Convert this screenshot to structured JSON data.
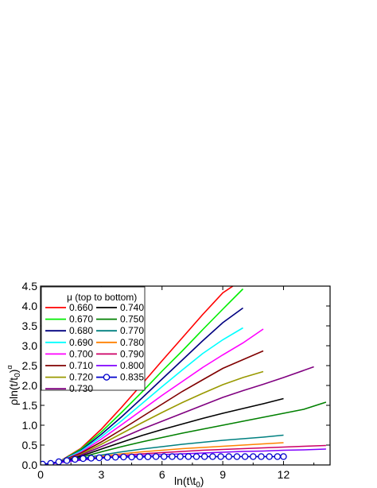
{
  "chart_data": {
    "type": "line",
    "title": "",
    "xlabel": "ln(t\\t",
    "xlabel_sub": "0",
    "xlabel_close": ")",
    "ylabel": "ρln(t/t",
    "ylabel_sub": "0",
    "ylabel_close": ")",
    "ylabel_sup": "α",
    "xlim": [
      0,
      14.3
    ],
    "ylim": [
      0,
      4.5
    ],
    "xticks": [
      "0",
      "3",
      "6",
      "9",
      "12"
    ],
    "xtick_values": [
      0,
      3,
      6,
      9,
      12
    ],
    "yticks": [
      "0.0",
      "0.5",
      "1.0",
      "1.5",
      "2.0",
      "2.5",
      "3.0",
      "3.5",
      "4.0",
      "4.5"
    ],
    "ytick_values": [
      0,
      0.5,
      1,
      1.5,
      2,
      2.5,
      3,
      3.5,
      4,
      4.5
    ],
    "grid": false,
    "legend_placement": "top-left",
    "legend_title": "μ (top to bottom)",
    "series": [
      {
        "name": "0.660",
        "color": "#ff0000",
        "x": [
          0,
          0.5,
          1,
          2,
          3,
          4,
          5,
          6,
          7,
          8,
          9,
          9.5
        ],
        "y": [
          0,
          0.03,
          0.11,
          0.42,
          0.9,
          1.45,
          2.03,
          2.62,
          3.2,
          3.78,
          4.33,
          4.5
        ]
      },
      {
        "name": "0.670",
        "color": "#00ee00",
        "x": [
          0,
          0.5,
          1,
          2,
          3,
          4,
          5,
          6,
          7,
          8,
          9,
          10
        ],
        "y": [
          0,
          0.03,
          0.1,
          0.4,
          0.83,
          1.32,
          1.83,
          2.36,
          2.87,
          3.4,
          3.92,
          4.43
        ]
      },
      {
        "name": "0.680",
        "color": "#000080",
        "x": [
          0,
          0.5,
          1,
          2,
          3,
          4,
          5,
          6,
          7,
          8,
          9,
          10
        ],
        "y": [
          0,
          0.03,
          0.1,
          0.37,
          0.77,
          1.21,
          1.68,
          2.16,
          2.64,
          3.12,
          3.58,
          3.95
        ]
      },
      {
        "name": "0.690",
        "color": "#00ffff",
        "x": [
          0,
          0.5,
          1,
          2,
          3,
          4,
          5,
          6,
          7,
          8,
          9,
          10
        ],
        "y": [
          0,
          0.03,
          0.1,
          0.35,
          0.71,
          1.11,
          1.54,
          1.97,
          2.39,
          2.8,
          3.15,
          3.45
        ]
      },
      {
        "name": "0.700",
        "color": "#ff00ff",
        "x": [
          0,
          0.5,
          1,
          2,
          3,
          4,
          5,
          6,
          7,
          8,
          9,
          10,
          11
        ],
        "y": [
          0,
          0.03,
          0.09,
          0.32,
          0.65,
          1.01,
          1.38,
          1.75,
          2.1,
          2.45,
          2.77,
          3.07,
          3.42
        ]
      },
      {
        "name": "0.710",
        "color": "#800000",
        "x": [
          0,
          0.5,
          1,
          2,
          3,
          4,
          5,
          6,
          7,
          8,
          9,
          10,
          11
        ],
        "y": [
          0,
          0.03,
          0.09,
          0.3,
          0.58,
          0.89,
          1.21,
          1.53,
          1.85,
          2.14,
          2.43,
          2.65,
          2.87
        ]
      },
      {
        "name": "0.720",
        "color": "#999900",
        "x": [
          0,
          0.5,
          1,
          2,
          3,
          4,
          5,
          6,
          7,
          8,
          9,
          10,
          11
        ],
        "y": [
          0,
          0.03,
          0.08,
          0.27,
          0.52,
          0.79,
          1.06,
          1.32,
          1.57,
          1.8,
          2.02,
          2.2,
          2.35
        ]
      },
      {
        "name": "0.730",
        "color": "#800080",
        "x": [
          0,
          0.5,
          1,
          2,
          3,
          4,
          5,
          6,
          7,
          8,
          9,
          10,
          11,
          12,
          13.5
        ],
        "y": [
          0,
          0.03,
          0.08,
          0.25,
          0.46,
          0.68,
          0.9,
          1.1,
          1.3,
          1.5,
          1.7,
          1.87,
          2.03,
          2.2,
          2.47
        ]
      },
      {
        "name": "0.740",
        "color": "#000000",
        "x": [
          0,
          0.5,
          1,
          2,
          3,
          4,
          5,
          6,
          7,
          8,
          9,
          10,
          11,
          12
        ],
        "y": [
          0,
          0.03,
          0.07,
          0.22,
          0.4,
          0.57,
          0.74,
          0.89,
          1.03,
          1.17,
          1.3,
          1.42,
          1.54,
          1.67
        ]
      },
      {
        "name": "0.750",
        "color": "#008000",
        "x": [
          0,
          0.5,
          1,
          2,
          3,
          4,
          5,
          6,
          7,
          8,
          9,
          10,
          11,
          12,
          13,
          14.1
        ],
        "y": [
          0,
          0.03,
          0.07,
          0.19,
          0.33,
          0.46,
          0.58,
          0.69,
          0.8,
          0.9,
          1.0,
          1.1,
          1.2,
          1.3,
          1.4,
          1.58
        ]
      },
      {
        "name": "0.770",
        "color": "#008080",
        "x": [
          0,
          0.5,
          1,
          2,
          3,
          4,
          5,
          6,
          7,
          8,
          9,
          10,
          11,
          12
        ],
        "y": [
          0,
          0.03,
          0.07,
          0.16,
          0.25,
          0.33,
          0.4,
          0.46,
          0.52,
          0.57,
          0.62,
          0.66,
          0.7,
          0.75
        ]
      },
      {
        "name": "0.780",
        "color": "#ff8000",
        "x": [
          0,
          0.5,
          1,
          2,
          3,
          4,
          5,
          6,
          7,
          8,
          9,
          10,
          11,
          12
        ],
        "y": [
          0,
          0.03,
          0.06,
          0.14,
          0.22,
          0.28,
          0.33,
          0.37,
          0.41,
          0.44,
          0.47,
          0.5,
          0.53,
          0.56
        ]
      },
      {
        "name": "0.790",
        "color": "#cc0066",
        "x": [
          0,
          0.5,
          1,
          2,
          3,
          4,
          5,
          6,
          7,
          8,
          9,
          10,
          11,
          12,
          13,
          14.1
        ],
        "y": [
          0,
          0.03,
          0.06,
          0.13,
          0.19,
          0.24,
          0.28,
          0.31,
          0.34,
          0.37,
          0.39,
          0.41,
          0.43,
          0.45,
          0.47,
          0.49
        ]
      },
      {
        "name": "0.800",
        "color": "#8000ff",
        "x": [
          0,
          0.5,
          1,
          2,
          3,
          4,
          5,
          6,
          7,
          8,
          9,
          10,
          11,
          12,
          13,
          14.1
        ],
        "y": [
          0,
          0.03,
          0.06,
          0.12,
          0.17,
          0.21,
          0.24,
          0.26,
          0.28,
          0.3,
          0.32,
          0.34,
          0.35,
          0.37,
          0.38,
          0.4
        ]
      },
      {
        "name": "0.835",
        "color": "#0000cc",
        "marker": "circle",
        "x": [
          0.1,
          0.5,
          0.9,
          1.3,
          1.7,
          2.1,
          2.5,
          2.9,
          3.3,
          3.7,
          4.1,
          4.5,
          4.9,
          5.3,
          5.7,
          6.1,
          6.5,
          6.9,
          7.3,
          7.7,
          8.1,
          8.5,
          8.9,
          9.3,
          9.7,
          10.1,
          10.5,
          10.9,
          11.3,
          11.7,
          12.0
        ],
        "y": [
          0.02,
          0.04,
          0.08,
          0.11,
          0.14,
          0.16,
          0.17,
          0.18,
          0.19,
          0.195,
          0.2,
          0.2,
          0.205,
          0.205,
          0.21,
          0.21,
          0.21,
          0.21,
          0.21,
          0.21,
          0.21,
          0.21,
          0.21,
          0.21,
          0.21,
          0.21,
          0.21,
          0.21,
          0.21,
          0.21,
          0.21
        ]
      }
    ]
  }
}
